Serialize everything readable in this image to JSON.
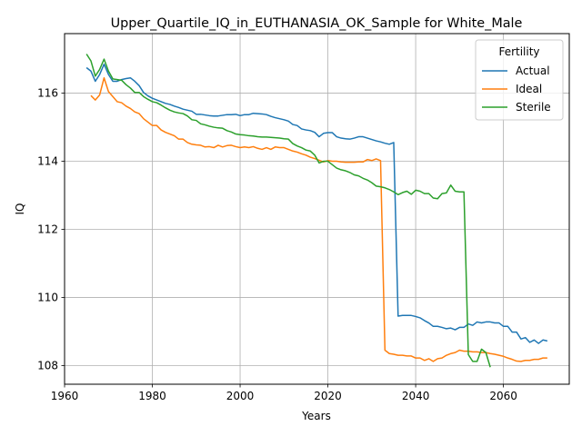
{
  "chart_data": {
    "type": "line",
    "title": "Upper_Quartile_IQ_in_EUTHANASIA_OK_Sample for White_Male",
    "xlabel": "Years",
    "ylabel": "IQ",
    "xlim": [
      1960,
      2075
    ],
    "ylim": [
      107.45,
      117.75
    ],
    "xticks": [
      1960,
      1980,
      2000,
      2020,
      2040,
      2060
    ],
    "yticks": [
      108,
      110,
      112,
      114,
      116
    ],
    "grid": true,
    "legend": {
      "title": "Fertility",
      "placement": "top-right"
    },
    "series": [
      {
        "name": "Actual",
        "color": "#1f77b4",
        "points": [
          [
            1965,
            116.75
          ],
          [
            1966,
            116.65
          ],
          [
            1967,
            116.35
          ],
          [
            1968,
            116.55
          ],
          [
            1969,
            116.85
          ],
          [
            1970,
            116.55
          ],
          [
            1971,
            116.35
          ],
          [
            1972,
            116.35
          ],
          [
            1973,
            116.4
          ],
          [
            1974,
            116.43
          ],
          [
            1975,
            116.45
          ],
          [
            1976,
            116.35
          ],
          [
            1977,
            116.22
          ],
          [
            1978,
            116.02
          ],
          [
            1979,
            115.92
          ],
          [
            1980,
            115.85
          ],
          [
            1981,
            115.8
          ],
          [
            1982,
            115.75
          ],
          [
            1983,
            115.7
          ],
          [
            1984,
            115.67
          ],
          [
            1985,
            115.62
          ],
          [
            1986,
            115.58
          ],
          [
            1987,
            115.53
          ],
          [
            1988,
            115.5
          ],
          [
            1989,
            115.47
          ],
          [
            1990,
            115.38
          ],
          [
            1991,
            115.38
          ],
          [
            1992,
            115.36
          ],
          [
            1993,
            115.34
          ],
          [
            1994,
            115.33
          ],
          [
            1995,
            115.33
          ],
          [
            1996,
            115.35
          ],
          [
            1997,
            115.37
          ],
          [
            1998,
            115.37
          ],
          [
            1999,
            115.38
          ],
          [
            2000,
            115.34
          ],
          [
            2001,
            115.37
          ],
          [
            2002,
            115.37
          ],
          [
            2003,
            115.41
          ],
          [
            2004,
            115.4
          ],
          [
            2005,
            115.39
          ],
          [
            2006,
            115.37
          ],
          [
            2007,
            115.32
          ],
          [
            2008,
            115.28
          ],
          [
            2009,
            115.25
          ],
          [
            2010,
            115.22
          ],
          [
            2011,
            115.18
          ],
          [
            2012,
            115.08
          ],
          [
            2013,
            115.05
          ],
          [
            2014,
            114.95
          ],
          [
            2015,
            114.92
          ],
          [
            2016,
            114.9
          ],
          [
            2017,
            114.85
          ],
          [
            2018,
            114.72
          ],
          [
            2019,
            114.82
          ],
          [
            2020,
            114.84
          ],
          [
            2021,
            114.84
          ],
          [
            2022,
            114.72
          ],
          [
            2023,
            114.68
          ],
          [
            2024,
            114.66
          ],
          [
            2025,
            114.65
          ],
          [
            2026,
            114.68
          ],
          [
            2027,
            114.72
          ],
          [
            2028,
            114.72
          ],
          [
            2029,
            114.68
          ],
          [
            2030,
            114.64
          ],
          [
            2031,
            114.6
          ],
          [
            2032,
            114.57
          ],
          [
            2033,
            114.53
          ],
          [
            2034,
            114.5
          ],
          [
            2035,
            114.55
          ],
          [
            2036,
            109.45
          ],
          [
            2037,
            109.47
          ],
          [
            2038,
            109.47
          ],
          [
            2039,
            109.47
          ],
          [
            2040,
            109.44
          ],
          [
            2041,
            109.4
          ],
          [
            2042,
            109.32
          ],
          [
            2043,
            109.25
          ],
          [
            2044,
            109.15
          ],
          [
            2045,
            109.15
          ],
          [
            2046,
            109.12
          ],
          [
            2047,
            109.08
          ],
          [
            2048,
            109.1
          ],
          [
            2049,
            109.05
          ],
          [
            2050,
            109.12
          ],
          [
            2051,
            109.12
          ],
          [
            2052,
            109.22
          ],
          [
            2053,
            109.18
          ],
          [
            2054,
            109.28
          ],
          [
            2055,
            109.25
          ],
          [
            2056,
            109.28
          ],
          [
            2057,
            109.28
          ],
          [
            2058,
            109.25
          ],
          [
            2059,
            109.25
          ],
          [
            2060,
            109.15
          ],
          [
            2061,
            109.15
          ],
          [
            2062,
            108.98
          ],
          [
            2063,
            108.98
          ],
          [
            2064,
            108.78
          ],
          [
            2065,
            108.82
          ],
          [
            2066,
            108.68
          ],
          [
            2067,
            108.75
          ],
          [
            2068,
            108.65
          ],
          [
            2069,
            108.75
          ],
          [
            2070,
            108.72
          ]
        ]
      },
      {
        "name": "Ideal",
        "color": "#ff7f0e",
        "points": [
          [
            1966,
            115.93
          ],
          [
            1967,
            115.8
          ],
          [
            1968,
            115.95
          ],
          [
            1969,
            116.45
          ],
          [
            1970,
            116.05
          ],
          [
            1971,
            115.9
          ],
          [
            1972,
            115.75
          ],
          [
            1973,
            115.72
          ],
          [
            1974,
            115.62
          ],
          [
            1975,
            115.55
          ],
          [
            1976,
            115.45
          ],
          [
            1977,
            115.4
          ],
          [
            1978,
            115.25
          ],
          [
            1979,
            115.15
          ],
          [
            1980,
            115.05
          ],
          [
            1981,
            115.05
          ],
          [
            1982,
            114.92
          ],
          [
            1983,
            114.85
          ],
          [
            1984,
            114.8
          ],
          [
            1985,
            114.75
          ],
          [
            1986,
            114.65
          ],
          [
            1987,
            114.65
          ],
          [
            1988,
            114.55
          ],
          [
            1989,
            114.5
          ],
          [
            1990,
            114.48
          ],
          [
            1991,
            114.47
          ],
          [
            1992,
            114.42
          ],
          [
            1993,
            114.43
          ],
          [
            1994,
            114.4
          ],
          [
            1995,
            114.47
          ],
          [
            1996,
            114.42
          ],
          [
            1997,
            114.46
          ],
          [
            1998,
            114.47
          ],
          [
            1999,
            114.43
          ],
          [
            2000,
            114.4
          ],
          [
            2001,
            114.42
          ],
          [
            2002,
            114.4
          ],
          [
            2003,
            114.43
          ],
          [
            2004,
            114.38
          ],
          [
            2005,
            114.35
          ],
          [
            2006,
            114.4
          ],
          [
            2007,
            114.35
          ],
          [
            2008,
            114.42
          ],
          [
            2009,
            114.4
          ],
          [
            2010,
            114.4
          ],
          [
            2011,
            114.35
          ],
          [
            2012,
            114.3
          ],
          [
            2013,
            114.27
          ],
          [
            2014,
            114.22
          ],
          [
            2015,
            114.18
          ],
          [
            2016,
            114.12
          ],
          [
            2017,
            114.08
          ],
          [
            2018,
            114.03
          ],
          [
            2019,
            113.98
          ],
          [
            2020,
            114.02
          ],
          [
            2021,
            114.0
          ],
          [
            2022,
            114.0
          ],
          [
            2023,
            113.98
          ],
          [
            2024,
            113.97
          ],
          [
            2025,
            113.97
          ],
          [
            2026,
            113.97
          ],
          [
            2027,
            113.98
          ],
          [
            2028,
            113.98
          ],
          [
            2029,
            114.05
          ],
          [
            2030,
            114.02
          ],
          [
            2031,
            114.07
          ],
          [
            2032,
            114.02
          ],
          [
            2033,
            108.45
          ],
          [
            2034,
            108.35
          ],
          [
            2035,
            108.33
          ],
          [
            2036,
            108.3
          ],
          [
            2037,
            108.3
          ],
          [
            2038,
            108.28
          ],
          [
            2039,
            108.28
          ],
          [
            2040,
            108.22
          ],
          [
            2041,
            108.22
          ],
          [
            2042,
            108.15
          ],
          [
            2043,
            108.2
          ],
          [
            2044,
            108.12
          ],
          [
            2045,
            108.2
          ],
          [
            2046,
            108.22
          ],
          [
            2047,
            108.3
          ],
          [
            2048,
            108.35
          ],
          [
            2049,
            108.38
          ],
          [
            2050,
            108.45
          ],
          [
            2051,
            108.42
          ],
          [
            2052,
            108.42
          ],
          [
            2053,
            108.4
          ],
          [
            2054,
            108.4
          ],
          [
            2055,
            108.38
          ],
          [
            2056,
            108.38
          ],
          [
            2057,
            108.35
          ],
          [
            2058,
            108.33
          ],
          [
            2059,
            108.3
          ],
          [
            2060,
            108.27
          ],
          [
            2061,
            108.22
          ],
          [
            2062,
            108.18
          ],
          [
            2063,
            108.13
          ],
          [
            2064,
            108.12
          ],
          [
            2065,
            108.15
          ],
          [
            2066,
            108.15
          ],
          [
            2067,
            108.18
          ],
          [
            2068,
            108.18
          ],
          [
            2069,
            108.22
          ],
          [
            2070,
            108.22
          ]
        ]
      },
      {
        "name": "Sterile",
        "color": "#2ca02c",
        "points": [
          [
            1965,
            117.15
          ],
          [
            1966,
            116.95
          ],
          [
            1967,
            116.5
          ],
          [
            1968,
            116.7
          ],
          [
            1969,
            117.0
          ],
          [
            1970,
            116.65
          ],
          [
            1971,
            116.42
          ],
          [
            1972,
            116.4
          ],
          [
            1973,
            116.38
          ],
          [
            1974,
            116.25
          ],
          [
            1975,
            116.15
          ],
          [
            1976,
            116.02
          ],
          [
            1977,
            116.02
          ],
          [
            1978,
            115.9
          ],
          [
            1979,
            115.82
          ],
          [
            1980,
            115.75
          ],
          [
            1981,
            115.72
          ],
          [
            1982,
            115.65
          ],
          [
            1983,
            115.57
          ],
          [
            1984,
            115.5
          ],
          [
            1985,
            115.45
          ],
          [
            1986,
            115.42
          ],
          [
            1987,
            115.4
          ],
          [
            1988,
            115.33
          ],
          [
            1989,
            115.22
          ],
          [
            1990,
            115.2
          ],
          [
            1991,
            115.1
          ],
          [
            1992,
            115.07
          ],
          [
            1993,
            115.03
          ],
          [
            1994,
            115.0
          ],
          [
            1995,
            114.98
          ],
          [
            1996,
            114.97
          ],
          [
            1997,
            114.9
          ],
          [
            1998,
            114.86
          ],
          [
            1999,
            114.8
          ],
          [
            2000,
            114.78
          ],
          [
            2001,
            114.77
          ],
          [
            2002,
            114.75
          ],
          [
            2003,
            114.74
          ],
          [
            2004,
            114.72
          ],
          [
            2005,
            114.71
          ],
          [
            2006,
            114.71
          ],
          [
            2007,
            114.7
          ],
          [
            2008,
            114.69
          ],
          [
            2009,
            114.68
          ],
          [
            2010,
            114.66
          ],
          [
            2011,
            114.65
          ],
          [
            2012,
            114.52
          ],
          [
            2013,
            114.45
          ],
          [
            2014,
            114.4
          ],
          [
            2015,
            114.33
          ],
          [
            2016,
            114.3
          ],
          [
            2017,
            114.18
          ],
          [
            2018,
            113.95
          ],
          [
            2019,
            114.0
          ],
          [
            2020,
            114.0
          ],
          [
            2021,
            113.9
          ],
          [
            2022,
            113.8
          ],
          [
            2023,
            113.75
          ],
          [
            2024,
            113.72
          ],
          [
            2025,
            113.67
          ],
          [
            2026,
            113.6
          ],
          [
            2027,
            113.57
          ],
          [
            2028,
            113.5
          ],
          [
            2029,
            113.45
          ],
          [
            2030,
            113.37
          ],
          [
            2031,
            113.27
          ],
          [
            2032,
            113.25
          ],
          [
            2033,
            113.22
          ],
          [
            2034,
            113.17
          ],
          [
            2035,
            113.1
          ],
          [
            2036,
            113.02
          ],
          [
            2037,
            113.08
          ],
          [
            2038,
            113.12
          ],
          [
            2039,
            113.03
          ],
          [
            2040,
            113.15
          ],
          [
            2041,
            113.12
          ],
          [
            2042,
            113.05
          ],
          [
            2043,
            113.05
          ],
          [
            2044,
            112.92
          ],
          [
            2045,
            112.9
          ],
          [
            2046,
            113.05
          ],
          [
            2047,
            113.07
          ],
          [
            2048,
            113.3
          ],
          [
            2049,
            113.12
          ],
          [
            2050,
            113.1
          ],
          [
            2051,
            113.1
          ],
          [
            2052,
            108.32
          ],
          [
            2053,
            108.12
          ],
          [
            2054,
            108.12
          ],
          [
            2055,
            108.48
          ],
          [
            2056,
            108.38
          ],
          [
            2057,
            107.95
          ]
        ]
      }
    ]
  }
}
